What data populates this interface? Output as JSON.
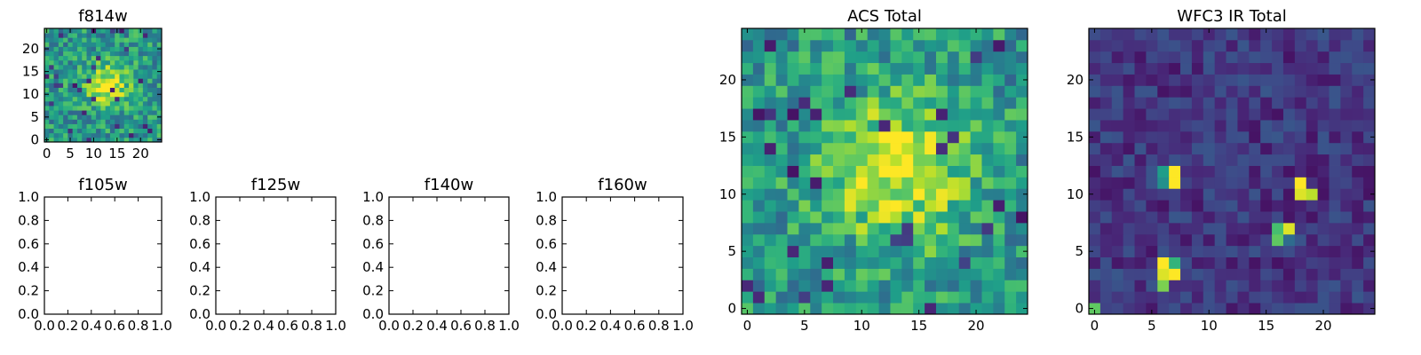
{
  "chart_data": [
    {
      "type": "heatmap",
      "title": "f814w",
      "xticks": [
        "0",
        "5",
        "10",
        "15",
        "20"
      ],
      "yticks": [
        "0",
        "5",
        "10",
        "15",
        "20"
      ],
      "xlim": [
        -0.5,
        24.5
      ],
      "ylim": [
        -0.5,
        24.5
      ],
      "colormap": "viridis",
      "grid_size": 25,
      "data_summary": "Noisy 25x25 image with a bright compact source centered near (13, 12)"
    },
    {
      "type": "heatmap",
      "title": "f105w",
      "xticks": [
        "0.0",
        "0.2",
        "0.4",
        "0.6",
        "0.8",
        "1.0"
      ],
      "yticks": [
        "0.0",
        "0.2",
        "0.4",
        "0.6",
        "0.8",
        "1.0"
      ],
      "xlim": [
        0,
        1
      ],
      "ylim": [
        0,
        1
      ],
      "empty": true
    },
    {
      "type": "heatmap",
      "title": "f125w",
      "xticks": [
        "0.0",
        "0.2",
        "0.4",
        "0.6",
        "0.8",
        "1.0"
      ],
      "yticks": [
        "0.0",
        "0.2",
        "0.4",
        "0.6",
        "0.8",
        "1.0"
      ],
      "xlim": [
        0,
        1
      ],
      "ylim": [
        0,
        1
      ],
      "empty": true
    },
    {
      "type": "heatmap",
      "title": "f140w",
      "xticks": [
        "0.0",
        "0.2",
        "0.4",
        "0.6",
        "0.8",
        "1.0"
      ],
      "yticks": [
        "0.0",
        "0.2",
        "0.4",
        "0.6",
        "0.8",
        "1.0"
      ],
      "xlim": [
        0,
        1
      ],
      "ylim": [
        0,
        1
      ],
      "empty": true
    },
    {
      "type": "heatmap",
      "title": "f160w",
      "xticks": [
        "0.0",
        "0.2",
        "0.4",
        "0.6",
        "0.8",
        "1.0"
      ],
      "yticks": [
        "0.0",
        "0.2",
        "0.4",
        "0.6",
        "0.8",
        "1.0"
      ],
      "xlim": [
        0,
        1
      ],
      "ylim": [
        0,
        1
      ],
      "empty": true
    },
    {
      "type": "heatmap",
      "title": "ACS Total",
      "xticks": [
        "0",
        "5",
        "10",
        "15",
        "20"
      ],
      "yticks": [
        "0",
        "5",
        "10",
        "15",
        "20"
      ],
      "xlim": [
        -0.5,
        24.5
      ],
      "ylim": [
        -0.5,
        24.5
      ],
      "colormap": "viridis",
      "grid_size": 25,
      "data_summary": "Noisy 25x25 image with a bright extended source centered near (13, 12)"
    },
    {
      "type": "heatmap",
      "title": "WFC3 IR Total",
      "xticks": [
        "0",
        "5",
        "10",
        "15",
        "20"
      ],
      "yticks": [
        "0",
        "5",
        "10",
        "15",
        "20"
      ],
      "xlim": [
        -0.5,
        24.5
      ],
      "ylim": [
        -0.5,
        24.5
      ],
      "colormap": "viridis",
      "grid_size": 25,
      "data_summary": "Mostly dark 25x25 image with a few bright pixel clusters near (7,11), (18,10.5), (16.5,7) and (6,3)",
      "hotspots": [
        {
          "x": 7,
          "y": 12,
          "v": 1.0
        },
        {
          "x": 7,
          "y": 11,
          "v": 1.0
        },
        {
          "x": 6,
          "y": 12,
          "v": 0.55
        },
        {
          "x": 6,
          "y": 11,
          "v": 0.5
        },
        {
          "x": 18,
          "y": 11,
          "v": 1.0
        },
        {
          "x": 18,
          "y": 10,
          "v": 0.95
        },
        {
          "x": 19,
          "y": 10,
          "v": 0.9
        },
        {
          "x": 17,
          "y": 7,
          "v": 0.95
        },
        {
          "x": 16,
          "y": 7,
          "v": 0.7
        },
        {
          "x": 16,
          "y": 6,
          "v": 0.75
        },
        {
          "x": 17,
          "y": 6,
          "v": 0.35
        },
        {
          "x": 6,
          "y": 4,
          "v": 1.0
        },
        {
          "x": 6,
          "y": 3,
          "v": 0.95
        },
        {
          "x": 7,
          "y": 3,
          "v": 1.0
        },
        {
          "x": 7,
          "y": 4,
          "v": 0.65
        },
        {
          "x": 6,
          "y": 2,
          "v": 0.8
        },
        {
          "x": 0,
          "y": 0,
          "v": 0.75
        }
      ]
    }
  ]
}
